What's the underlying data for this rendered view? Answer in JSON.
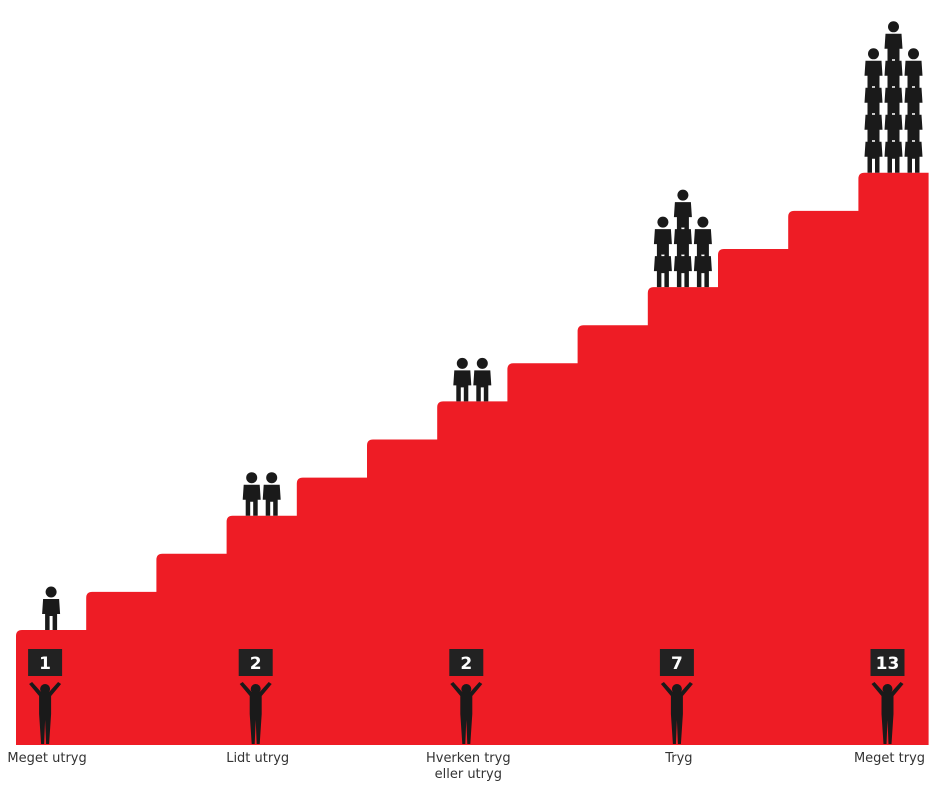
{
  "chart_data": {
    "type": "bar",
    "categories": [
      "Meget utryg",
      "Lidt utryg",
      "Hverken tryg eller utryg",
      "Tryg",
      "Meget tryg"
    ],
    "category_lines": [
      [
        "Meget utryg"
      ],
      [
        "Lidt utryg"
      ],
      [
        "Hverken tryg",
        "eller utryg"
      ],
      [
        "Tryg"
      ],
      [
        "Meget tryg"
      ]
    ],
    "values": [
      1,
      2,
      2,
      7,
      13
    ],
    "count_labels": [
      "1",
      "2",
      "2",
      "7",
      "13"
    ],
    "step_count": 13,
    "style": "pictograph staircase"
  },
  "colors": {
    "stairs": "#ee1c25",
    "figures": "#1a1a1a",
    "label_box": "#222222",
    "label_text": "#ffffff",
    "category_text": "#333333"
  }
}
